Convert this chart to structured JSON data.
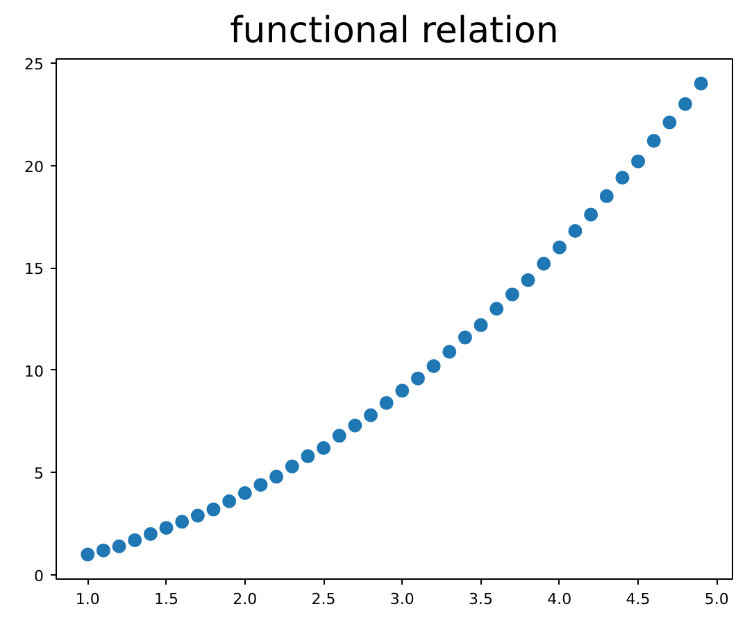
{
  "chart_data": {
    "type": "scatter",
    "title": "functional relation",
    "x": [
      1.0,
      1.1,
      1.2,
      1.3,
      1.4,
      1.5,
      1.6,
      1.7,
      1.8,
      1.9,
      2.0,
      2.1,
      2.2,
      2.3,
      2.4,
      2.5,
      2.6,
      2.7,
      2.8,
      2.9,
      3.0,
      3.1,
      3.2,
      3.3,
      3.4,
      3.5,
      3.6,
      3.7,
      3.8,
      3.9,
      4.0,
      4.1,
      4.2,
      4.3,
      4.4,
      4.5,
      4.6,
      4.7,
      4.8,
      4.9
    ],
    "series": [
      {
        "color": "#1f77b4",
        "values": [
          1.0,
          1.2,
          1.4,
          1.7,
          2.0,
          2.3,
          2.6,
          2.9,
          3.2,
          3.6,
          4.0,
          4.4,
          4.8,
          5.3,
          5.8,
          6.2,
          6.8,
          7.3,
          7.8,
          8.4,
          9.0,
          9.6,
          10.2,
          10.9,
          11.6,
          12.2,
          13.0,
          13.7,
          14.4,
          15.2,
          16.0,
          16.8,
          17.6,
          18.5,
          19.4,
          20.2,
          21.2,
          22.1,
          23.0,
          24.0
        ]
      }
    ],
    "xlim": [
      0.8,
      5.1
    ],
    "ylim": [
      -0.2,
      25.2
    ],
    "xticks": [
      {
        "value": 1.0,
        "label": "1.0"
      },
      {
        "value": 1.5,
        "label": "1.5"
      },
      {
        "value": 2.0,
        "label": "2.0"
      },
      {
        "value": 2.5,
        "label": "2.5"
      },
      {
        "value": 3.0,
        "label": "3.0"
      },
      {
        "value": 3.5,
        "label": "3.5"
      },
      {
        "value": 4.0,
        "label": "4.0"
      },
      {
        "value": 4.5,
        "label": "4.5"
      },
      {
        "value": 5.0,
        "label": "5.0"
      }
    ],
    "yticks": [
      0,
      5,
      10,
      15,
      20,
      25
    ],
    "marker": "circle",
    "grid": false
  }
}
